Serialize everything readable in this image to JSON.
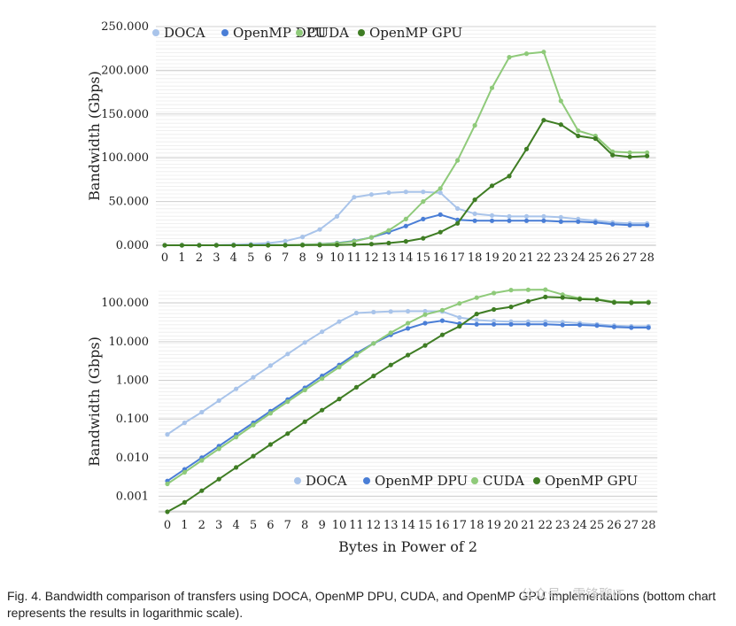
{
  "chart_data": [
    {
      "type": "line",
      "yscale": "linear",
      "ylabel": "Bandwidth (Gbps)",
      "xlabel": "",
      "x": [
        0,
        1,
        2,
        3,
        4,
        5,
        6,
        7,
        8,
        9,
        10,
        11,
        12,
        13,
        14,
        15,
        16,
        17,
        18,
        19,
        20,
        21,
        22,
        23,
        24,
        25,
        26,
        27,
        28
      ],
      "ylim": [
        0,
        250
      ],
      "yticks": [
        0,
        50,
        100,
        150,
        200,
        250
      ],
      "ytick_labels": [
        "0.000",
        "50.000",
        "100.000",
        "150.000",
        "200.000",
        "250.000"
      ],
      "legend_position": "top",
      "series": [
        {
          "name": "DOCA",
          "color": "#a9c4ea",
          "values": [
            0.04,
            0.08,
            0.15,
            0.3,
            0.6,
            1.2,
            2.4,
            4.8,
            9.5,
            18,
            33,
            55,
            58,
            60,
            61,
            61,
            60,
            42,
            36,
            34,
            33,
            33,
            33,
            32,
            30,
            28,
            26,
            25,
            25
          ]
        },
        {
          "name": "OpenMP DPU",
          "color": "#4a7ed6",
          "values": [
            0.0025,
            0.005,
            0.01,
            0.02,
            0.04,
            0.08,
            0.16,
            0.32,
            0.64,
            1.3,
            2.5,
            5,
            9,
            15,
            22,
            30,
            35,
            29,
            28,
            28,
            28,
            28,
            28,
            27,
            27,
            26,
            24,
            23,
            23
          ]
        },
        {
          "name": "CUDA",
          "color": "#8fca7a",
          "values": [
            0.0021,
            0.0042,
            0.0085,
            0.017,
            0.034,
            0.07,
            0.14,
            0.28,
            0.56,
            1.1,
            2.2,
            4.5,
            9,
            17,
            30,
            50,
            65,
            97,
            137,
            180,
            215,
            219,
            221,
            165,
            131,
            125,
            107,
            106,
            106
          ]
        },
        {
          "name": "OpenMP GPU",
          "color": "#3f7d24",
          "values": [
            0.0004,
            0.0007,
            0.0014,
            0.0028,
            0.0056,
            0.011,
            0.022,
            0.042,
            0.085,
            0.17,
            0.33,
            0.66,
            1.3,
            2.5,
            4.5,
            8,
            15,
            25,
            52,
            68,
            79,
            110,
            143,
            138,
            125,
            122,
            103,
            101,
            102
          ]
        }
      ]
    },
    {
      "type": "line",
      "yscale": "log",
      "ylabel": "Bandwidth (Gbps)",
      "xlabel": "Bytes in Power of 2",
      "x": [
        0,
        1,
        2,
        3,
        4,
        5,
        6,
        7,
        8,
        9,
        10,
        11,
        12,
        13,
        14,
        15,
        16,
        17,
        18,
        19,
        20,
        21,
        22,
        23,
        24,
        25,
        26,
        27,
        28
      ],
      "ylim": [
        0.0004,
        200
      ],
      "yticks": [
        0.001,
        0.01,
        0.1,
        1,
        10,
        100
      ],
      "ytick_labels": [
        "0.001",
        "0.010",
        "0.100",
        "1.000",
        "10.000",
        "100.000"
      ],
      "legend_position": "bottom-right",
      "series": [
        {
          "name": "DOCA",
          "color": "#a9c4ea",
          "values": [
            0.04,
            0.08,
            0.15,
            0.3,
            0.6,
            1.2,
            2.4,
            4.8,
            9.5,
            18,
            33,
            55,
            58,
            60,
            61,
            61,
            60,
            42,
            36,
            34,
            33,
            33,
            33,
            32,
            30,
            28,
            26,
            25,
            25
          ]
        },
        {
          "name": "OpenMP DPU",
          "color": "#4a7ed6",
          "values": [
            0.0025,
            0.005,
            0.01,
            0.02,
            0.04,
            0.08,
            0.16,
            0.32,
            0.64,
            1.3,
            2.5,
            5,
            9,
            15,
            22,
            30,
            35,
            29,
            28,
            28,
            28,
            28,
            28,
            27,
            27,
            26,
            24,
            23,
            23
          ]
        },
        {
          "name": "CUDA",
          "color": "#8fca7a",
          "values": [
            0.0021,
            0.0042,
            0.0085,
            0.017,
            0.034,
            0.07,
            0.14,
            0.28,
            0.56,
            1.1,
            2.2,
            4.5,
            9,
            17,
            30,
            50,
            65,
            97,
            137,
            180,
            215,
            219,
            221,
            165,
            131,
            125,
            107,
            106,
            106
          ]
        },
        {
          "name": "OpenMP GPU",
          "color": "#3f7d24",
          "values": [
            0.0004,
            0.0007,
            0.0014,
            0.0028,
            0.0056,
            0.011,
            0.022,
            0.042,
            0.085,
            0.17,
            0.33,
            0.66,
            1.3,
            2.5,
            4.5,
            8,
            15,
            25,
            52,
            68,
            79,
            110,
            143,
            138,
            125,
            122,
            103,
            101,
            102
          ]
        }
      ]
    }
  ],
  "caption": "Fig. 4.  Bandwidth comparison of transfers using DOCA, OpenMP DPU, CUDA, and OpenMP GPU implementations (bottom chart represents the results in logarithmic scale).",
  "watermark": "公众号 · 雷锋聊IT"
}
